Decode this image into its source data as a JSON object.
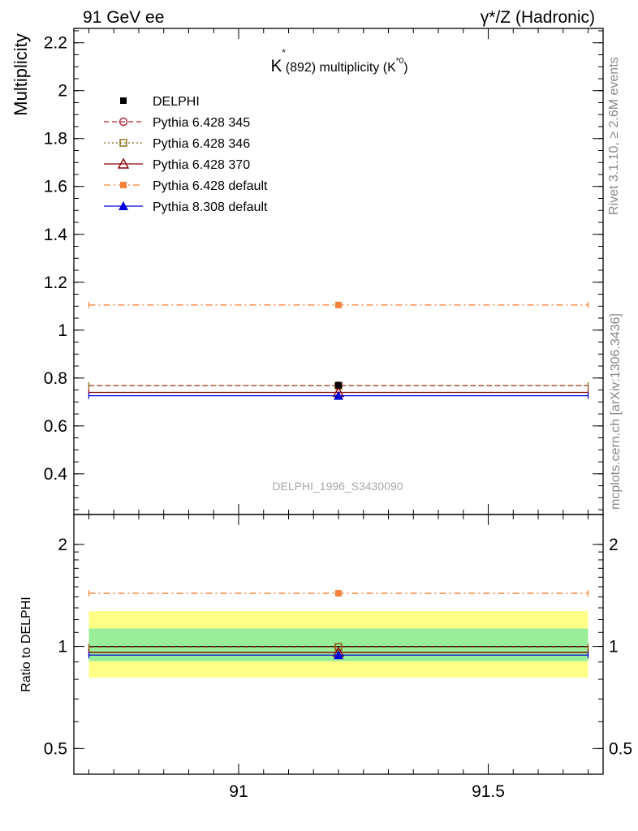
{
  "header": {
    "left": "91 GeV ee",
    "right": "γ*/Z (Hadronic)"
  },
  "side": {
    "rivet": "Rivet 3.1.10, ≥ 2.6M events",
    "mcplots": "mcplots.cern.ch [arXiv:1306.3436]"
  },
  "chart_data": [
    {
      "type": "scatter",
      "title": "K*(892) multiplicity (K*0)",
      "title_parts": {
        "base": "K",
        "sup": "*",
        "mid": "(892) multiplicity (K",
        "sup2": "*0",
        "end": ")"
      },
      "watermark": "DELPHI_1996_S3430090",
      "ylabel": "Multiplicity",
      "xlim": [
        90.67,
        91.73
      ],
      "ylim": [
        0.23,
        2.26
      ],
      "yticks": [
        0.4,
        0.6,
        0.8,
        1,
        1.2,
        1.4,
        1.6,
        1.8,
        2,
        2.2
      ],
      "ytick_labels": [
        "0.4",
        "0.6",
        "0.8",
        "1",
        "1.2",
        "1.4",
        "1.6",
        "1.8",
        "2",
        "2.2"
      ],
      "legend_position": "top-left",
      "series": [
        {
          "name": "DELPHI",
          "x": 91.2,
          "y": 0.77,
          "xmin": 91.2,
          "xmax": 91.2,
          "color": "#000000",
          "marker": "square-filled",
          "line": "none"
        },
        {
          "name": "Pythia 6.428 345",
          "x": 91.2,
          "y": 0.768,
          "xmin": 90.7,
          "xmax": 91.7,
          "color": "#b22234",
          "marker": "circle-open",
          "line": "dashed"
        },
        {
          "name": "Pythia 6.428 346",
          "x": 91.2,
          "y": 0.768,
          "xmin": 90.7,
          "xmax": 91.7,
          "color": "#8b6914",
          "marker": "square-open",
          "line": "dotted"
        },
        {
          "name": "Pythia 6.428 370",
          "x": 91.2,
          "y": 0.74,
          "xmin": 90.7,
          "xmax": 91.7,
          "color": "#8b0000",
          "marker": "triangle-open",
          "line": "solid"
        },
        {
          "name": "Pythia 6.428 default",
          "x": 91.2,
          "y": 1.105,
          "xmin": 90.7,
          "xmax": 91.7,
          "color": "#f5823a",
          "marker": "square-filled",
          "line": "dashdot"
        },
        {
          "name": "Pythia 8.308 default",
          "x": 91.2,
          "y": 0.726,
          "xmin": 90.7,
          "xmax": 91.7,
          "color": "#0000dd",
          "marker": "triangle-filled",
          "line": "solid"
        }
      ]
    },
    {
      "type": "scatter",
      "ylabel": "Ratio to DELPHI",
      "xlabel": "",
      "xlim": [
        90.67,
        91.73
      ],
      "xticks": [
        91,
        91.5
      ],
      "xtick_labels": [
        "91",
        "91.5"
      ],
      "yscale": "log",
      "ylim": [
        0.42,
        2.45
      ],
      "yticks": [
        0.5,
        1,
        2
      ],
      "ytick_labels": [
        "0.5",
        "1",
        "2"
      ],
      "bands": [
        {
          "name": "outer",
          "low": 0.81,
          "high": 1.27,
          "color": "#ffff88"
        },
        {
          "name": "inner",
          "low": 0.905,
          "high": 1.13,
          "color": "#99ee99"
        }
      ],
      "band_xrange": [
        90.7,
        91.7
      ],
      "reference": 1.0,
      "series": [
        {
          "name": "Pythia 6.428 345",
          "x": 91.2,
          "y": 0.997,
          "xmin": 90.7,
          "xmax": 91.7,
          "color": "#b22234",
          "marker": "circle-open",
          "line": "dashed"
        },
        {
          "name": "Pythia 6.428 346",
          "x": 91.2,
          "y": 0.997,
          "xmin": 90.7,
          "xmax": 91.7,
          "color": "#8b6914",
          "marker": "square-open",
          "line": "dotted"
        },
        {
          "name": "Pythia 6.428 370",
          "x": 91.2,
          "y": 0.961,
          "xmin": 90.7,
          "xmax": 91.7,
          "color": "#8b0000",
          "marker": "triangle-open",
          "line": "solid"
        },
        {
          "name": "Pythia 6.428 default",
          "x": 91.2,
          "y": 1.435,
          "xmin": 90.7,
          "xmax": 91.7,
          "color": "#f5823a",
          "marker": "square-filled",
          "line": "dashdot"
        },
        {
          "name": "Pythia 8.308 default",
          "x": 91.2,
          "y": 0.943,
          "xmin": 90.7,
          "xmax": 91.7,
          "color": "#0000dd",
          "marker": "triangle-filled",
          "line": "solid"
        }
      ]
    }
  ]
}
